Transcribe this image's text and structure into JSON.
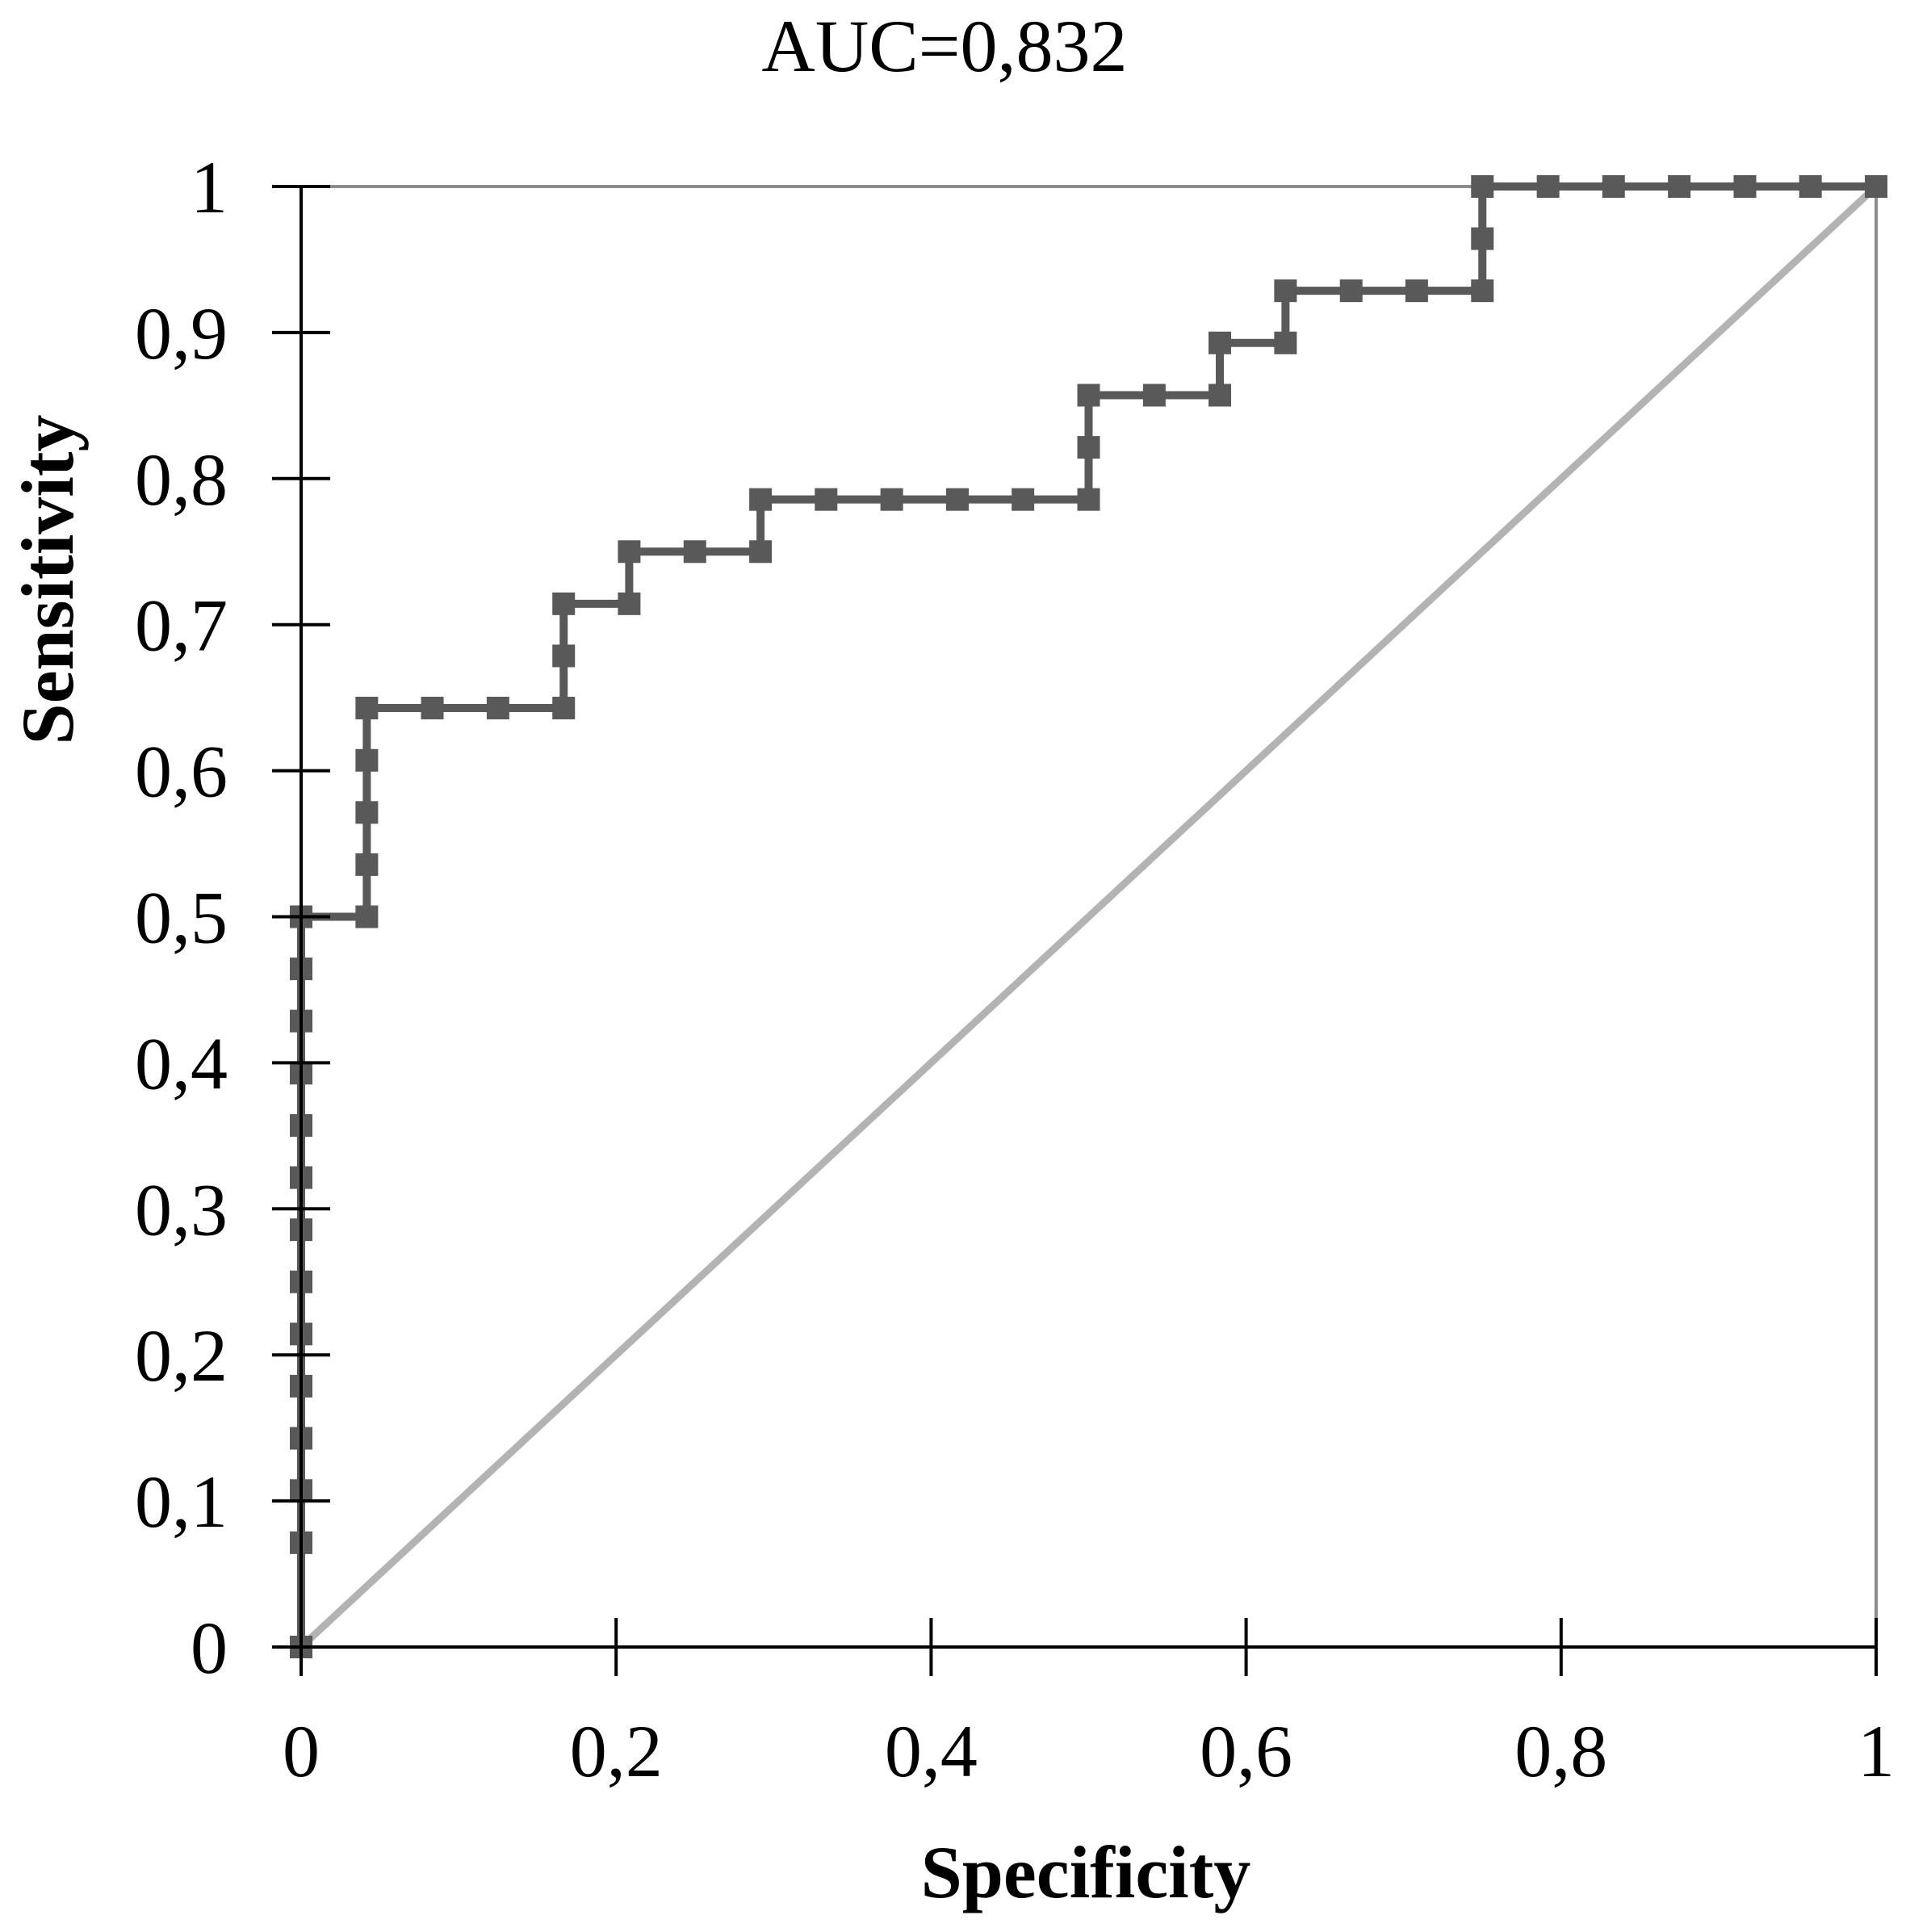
{
  "chart_data": {
    "type": "line",
    "title": "AUC=0,832",
    "xlabel": "Specificity",
    "ylabel": "Sensitivity",
    "xlim": [
      0,
      1
    ],
    "ylim": [
      0,
      1
    ],
    "x_ticks": [
      "0",
      "0,2",
      "0,4",
      "0,6",
      "0,8",
      "1"
    ],
    "y_ticks": [
      "0",
      "0,1",
      "0,2",
      "0,3",
      "0,4",
      "0,5",
      "0,6",
      "0,7",
      "0,8",
      "0,9",
      "1"
    ],
    "grid": false,
    "legend": "none",
    "series": [
      {
        "style": "step-with-markers",
        "color": "#595959",
        "x": [
          0,
          0,
          0,
          0,
          0,
          0,
          0,
          0,
          0,
          0,
          0,
          0,
          0,
          0,
          0,
          0.0417,
          0.0417,
          0.0417,
          0.0417,
          0.0417,
          0.0833,
          0.125,
          0.1667,
          0.1667,
          0.1667,
          0.2083,
          0.2083,
          0.25,
          0.2917,
          0.2917,
          0.3333,
          0.375,
          0.4167,
          0.4583,
          0.5,
          0.5,
          0.5,
          0.5417,
          0.5833,
          0.5833,
          0.625,
          0.625,
          0.6667,
          0.7083,
          0.75,
          0.75,
          0.75,
          0.7917,
          0.8333,
          0.875,
          0.9167,
          0.9583,
          1
        ],
        "y": [
          0,
          0.0714,
          0.1071,
          0.1429,
          0.1786,
          0.2143,
          0.25,
          0.2857,
          0.3214,
          0.3571,
          0.3929,
          0.4286,
          0.4643,
          0.5,
          0.5,
          0.5,
          0.5357,
          0.5714,
          0.6071,
          0.6429,
          0.6429,
          0.6429,
          0.6429,
          0.6786,
          0.7143,
          0.7143,
          0.75,
          0.75,
          0.75,
          0.7857,
          0.7857,
          0.7857,
          0.7857,
          0.7857,
          0.7857,
          0.8214,
          0.8571,
          0.8571,
          0.8571,
          0.8929,
          0.8929,
          0.9286,
          0.9286,
          0.9286,
          0.9286,
          0.9643,
          1,
          1,
          1,
          1,
          1,
          1,
          1
        ]
      },
      {
        "style": "reference-diagonal",
        "color": "#b3b3b3",
        "x": [
          0,
          1
        ],
        "y": [
          0,
          1
        ]
      }
    ]
  }
}
